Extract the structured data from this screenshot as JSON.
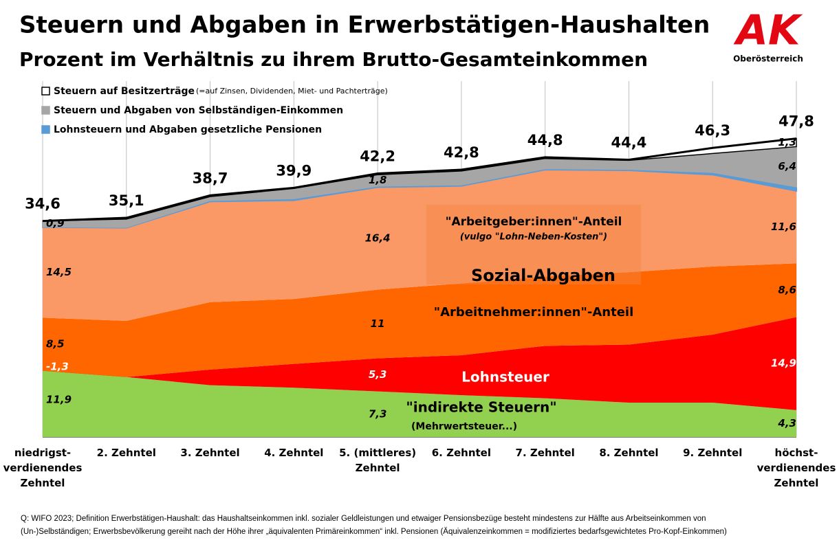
{
  "title": "Steuern und Abgaben in Erwerbstätigen-Haushalten",
  "subtitle": "Prozent im Verhältnis zu ihrem Brutto-Gesamteinkommen",
  "logo": {
    "text": "AK",
    "subtitle": "Oberösterreich"
  },
  "footnote": [
    "Q: WIFO 2023; Definition Erwerbstätigen-Haushalt: das Haushaltseinkommen inkl. sozialer Geldleistungen und etwaiger Pensionsbezüge besteht mindestens zur Hälfte aus Arbeitseinkommen von",
    "(Un-)Selbständigen; Erwerbsbevölkerung gereiht nach der Höhe ihrer „äquivalenten Primäreinkommen“ inkl. Pensionen (Äquivalenzeinkommen = modifiziertes bedarfsgewichtetes Pro-Kopf-Einkommen)"
  ],
  "chart_data": {
    "type": "stacked_area",
    "categories": [
      "niedrigst-\nverdienendes\nZehntel",
      "2. Zehntel",
      "3. Zehntel",
      "4. Zehntel",
      "5. (mittleres)\nZehntel",
      "6. Zehntel",
      "7. Zehntel",
      "8. Zehntel",
      "9. Zehntel",
      "höchst-\nverdienendes\nZehntel"
    ],
    "ylim": [
      0,
      57
    ],
    "grid": true,
    "series": [
      {
        "name": "\"indirekte Steuern\"",
        "color": "#92d050",
        "values": [
          11.9,
          9.6,
          8.3,
          7.9,
          7.3,
          6.7,
          6.2,
          5.5,
          5.5,
          4.3
        ],
        "value_labels": [
          "11,9",
          null,
          null,
          null,
          "7,3",
          null,
          null,
          null,
          null,
          "4,3"
        ]
      },
      {
        "name": "Lohnsteuer",
        "color": "#ff0000",
        "values": [
          -1.3,
          0.0,
          2.5,
          3.8,
          5.3,
          6.4,
          8.4,
          9.3,
          10.9,
          14.9
        ],
        "value_labels": [
          "-1,3",
          null,
          null,
          null,
          "5,3",
          null,
          null,
          null,
          null,
          "14,9"
        ]
      },
      {
        "name": "\"Arbeitnehmer:innen\"-Anteil",
        "color": "#ff6600",
        "values": [
          8.5,
          9.0,
          10.8,
          10.4,
          11,
          11.5,
          11.1,
          11.6,
          10.9,
          8.6
        ],
        "value_labels": [
          "8,5",
          null,
          null,
          null,
          "11",
          null,
          null,
          null,
          null,
          "8,6"
        ]
      },
      {
        "name": "\"Arbeitgeber:innen\"-Anteil",
        "color": "#fb9966",
        "values": [
          14.5,
          14.9,
          16.1,
          15.8,
          16.4,
          15.6,
          17.1,
          16.3,
          14.7,
          11.6
        ],
        "value_labels": [
          "14,5",
          null,
          null,
          null,
          "16,4",
          null,
          null,
          null,
          null,
          "11,6"
        ]
      },
      {
        "name": "Lohnsteuern und Abgaben gesetzliche Pensionen",
        "color": "#5b9bd5",
        "legend": true,
        "values": [
          0.1,
          0.1,
          0.2,
          0.3,
          0.2,
          0.2,
          0.2,
          0.2,
          0.4,
          0.7
        ]
      },
      {
        "name": "Steuern und Abgaben von Selbständigen-Einkommen",
        "color": "#a6a6a6",
        "legend": true,
        "values": [
          0.9,
          1.3,
          0.6,
          1.6,
          1.8,
          2.2,
          1.6,
          1.4,
          3.0,
          6.4
        ],
        "value_labels": [
          "0,9",
          null,
          null,
          null,
          "1,8",
          null,
          null,
          null,
          null,
          "6,4"
        ]
      },
      {
        "name": "Steuern auf Besitzerträge",
        "color": "#ffffff",
        "legend": true,
        "values": [
          0,
          0.2,
          0.2,
          0.1,
          0.2,
          0.2,
          0.2,
          0.1,
          0.9,
          1.3
        ],
        "value_labels": [
          null,
          null,
          null,
          null,
          null,
          null,
          null,
          null,
          null,
          "1,3"
        ]
      }
    ],
    "totals": [
      34.6,
      35.1,
      38.7,
      39.9,
      42.2,
      42.8,
      44.8,
      44.4,
      46.3,
      47.8
    ],
    "total_labels": [
      "34,6",
      "35,1",
      "38,7",
      "39,9",
      "42,2",
      "42,8",
      "44,8",
      "44,4",
      "46,3",
      "47,8"
    ],
    "legend_note": "(=auf Zinsen, Dividenden, Miet- und Pachterträge)",
    "annotations": {
      "employer": "\"Arbeitgeber:innen\"-Anteil",
      "employer_note": "(vulgo \"Lohn-Neben-Kosten\")",
      "social": "Sozial-Abgaben",
      "vat_note": "(Mehrwertsteuer...)"
    }
  }
}
